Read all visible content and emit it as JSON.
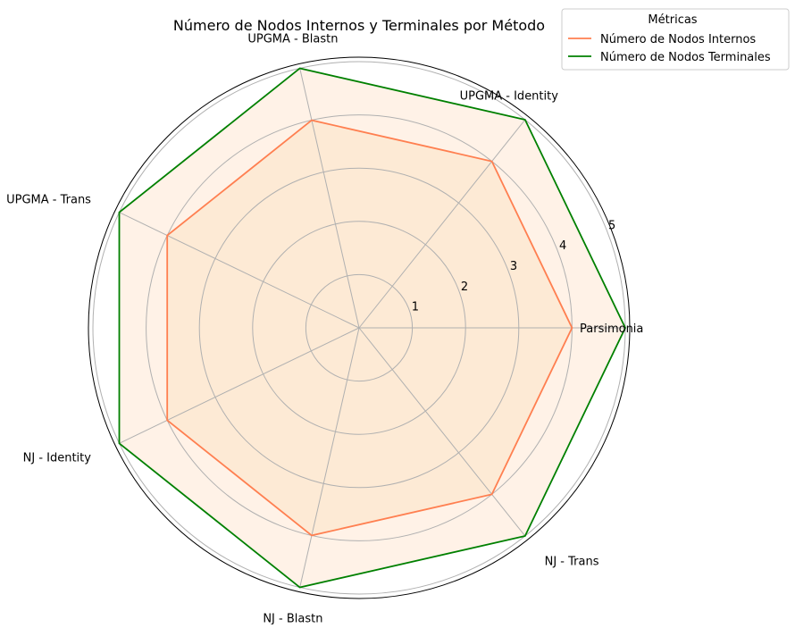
{
  "chart_data": {
    "type": "radar",
    "title": "Número de Nodos Internos y Terminales por Método",
    "categories": [
      "Parsimonia",
      "UPGMA - Identity",
      "UPGMA - Blastn",
      "UPGMA - Trans",
      "NJ - Identity",
      "NJ - Blastn",
      "NJ - Trans"
    ],
    "radial_ticks": [
      "1",
      "2",
      "3",
      "4",
      "5"
    ],
    "rlim": [
      0,
      5
    ],
    "grid": true,
    "legend": {
      "title": "Métricas",
      "placement": "top-right"
    },
    "series": [
      {
        "name": "Número de Nodos Internos",
        "values": [
          4,
          4,
          4,
          4,
          4,
          4,
          4
        ],
        "color": "#ff7f50",
        "fill": "#f5deb3"
      },
      {
        "name": "Número de Nodos Terminales",
        "values": [
          5,
          5,
          5,
          5,
          5,
          5,
          5
        ],
        "color": "#008000",
        "fill": "#ffdab9"
      }
    ]
  }
}
